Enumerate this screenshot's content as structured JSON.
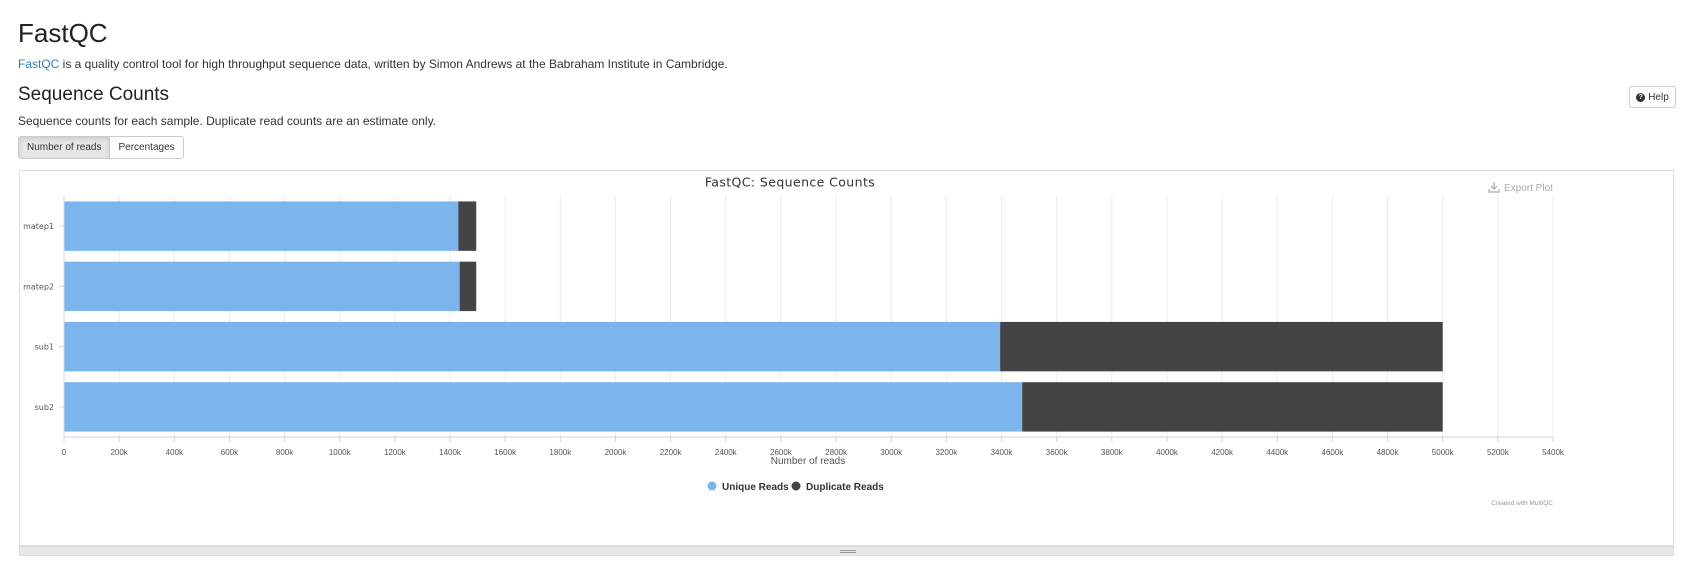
{
  "header": {
    "title": "FastQC",
    "intro_link": "FastQC",
    "intro_text": " is a quality control tool for high throughput sequence data, written by Simon Andrews at the Babraham Institute in Cambridge."
  },
  "section": {
    "title": "Sequence Counts",
    "description": "Sequence counts for each sample. Duplicate read counts are an estimate only.",
    "help_label": "Help",
    "buttons": [
      "Number of reads",
      "Percentages"
    ]
  },
  "plot": {
    "export_label": "Export Plot",
    "credit": "Created with MultiQC"
  },
  "chart_data": {
    "type": "bar",
    "orientation": "horizontal",
    "stacked": true,
    "title": "FastQC: Sequence Counts",
    "xlabel": "Number of reads",
    "categories": [
      "matep1",
      "matep2",
      "sub1",
      "sub2"
    ],
    "series": [
      {
        "name": "Unique Reads",
        "color": "#7cb5ec",
        "values": [
          1430000,
          1435000,
          3395000,
          3475000
        ]
      },
      {
        "name": "Duplicate Reads",
        "color": "#434348",
        "values": [
          65000,
          60000,
          1605000,
          1525000
        ]
      }
    ],
    "xlim": [
      0,
      5400000
    ],
    "xticks": [
      0,
      200000,
      400000,
      600000,
      800000,
      1000000,
      1200000,
      1400000,
      1600000,
      1800000,
      2000000,
      2200000,
      2400000,
      2600000,
      2800000,
      3000000,
      3200000,
      3400000,
      3600000,
      3800000,
      4000000,
      4200000,
      4400000,
      4600000,
      4800000,
      5000000,
      5200000,
      5400000
    ],
    "xtick_labels": [
      "0",
      "200k",
      "400k",
      "600k",
      "800k",
      "1000k",
      "1200k",
      "1400k",
      "1600k",
      "1800k",
      "2000k",
      "2200k",
      "2400k",
      "2600k",
      "2800k",
      "3000k",
      "3200k",
      "3400k",
      "3600k",
      "3800k",
      "4000k",
      "4200k",
      "4400k",
      "4600k",
      "4800k",
      "5000k",
      "5200k",
      "5400k"
    ],
    "grid": true,
    "legend_position": "bottom-center"
  }
}
